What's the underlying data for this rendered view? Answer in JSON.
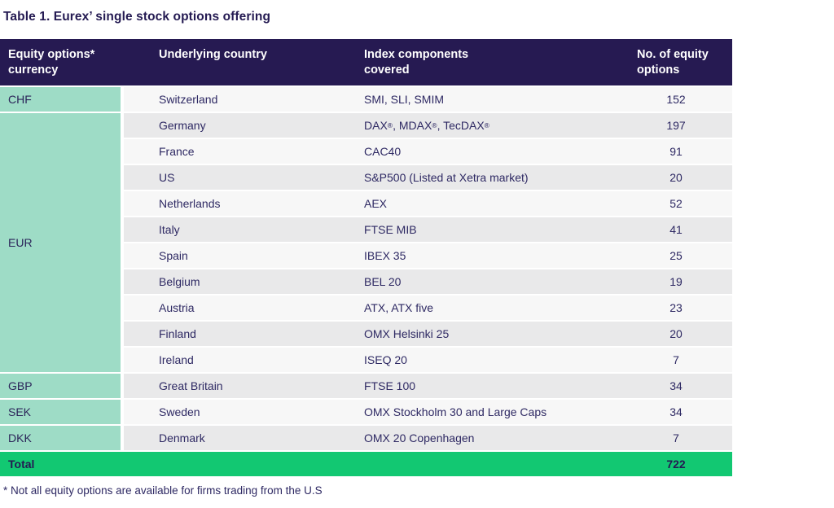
{
  "title": "Table 1. Eurex’ single stock options offering",
  "colors": {
    "header_bg": "#261a52",
    "currency_bg": "#9edcc6",
    "total_bg": "#12c872",
    "row_light": "#f7f7f7",
    "row_gray": "#e9e9ea",
    "text_navy": "#2e2963"
  },
  "table": {
    "columns": [
      {
        "label": "Equity options*\ncurrency"
      },
      {
        "label": "Underlying country"
      },
      {
        "label": "Index components\ncovered"
      },
      {
        "label": "No. of equity\noptions"
      }
    ],
    "currency_groups": [
      {
        "code": "CHF",
        "row_span": 1
      },
      {
        "code": "EUR",
        "row_span": 10
      },
      {
        "code": "GBP",
        "row_span": 1
      },
      {
        "code": "SEK",
        "row_span": 1
      },
      {
        "code": "DKK",
        "row_span": 1
      }
    ],
    "rows": [
      {
        "country": "Switzerland",
        "index": "SMI, SLI, SMIM",
        "count": "152"
      },
      {
        "country": "Germany",
        "index": "DAX®, MDAX®, TecDAX®",
        "count": "197"
      },
      {
        "country": "France",
        "index": "CAC40",
        "count": "91"
      },
      {
        "country": "US",
        "index": "S&P500 (Listed at Xetra market)",
        "count": "20"
      },
      {
        "country": "Netherlands",
        "index": "AEX",
        "count": "52"
      },
      {
        "country": "Italy",
        "index": "FTSE MIB",
        "count": "41"
      },
      {
        "country": "Spain",
        "index": "IBEX 35",
        "count": "25"
      },
      {
        "country": "Belgium",
        "index": "BEL 20",
        "count": "19"
      },
      {
        "country": "Austria",
        "index": "ATX, ATX five",
        "count": "23"
      },
      {
        "country": "Finland",
        "index": "OMX Helsinki 25",
        "count": "20"
      },
      {
        "country": "Ireland",
        "index": "ISEQ 20",
        "count": "7"
      },
      {
        "country": "Great Britain",
        "index": "FTSE 100",
        "count": "34"
      },
      {
        "country": "Sweden",
        "index": "OMX Stockholm 30 and Large Caps",
        "count": "34"
      },
      {
        "country": "Denmark",
        "index": "OMX 20 Copenhagen",
        "count": "7"
      }
    ],
    "total": {
      "label": "Total",
      "value": "722"
    }
  },
  "footnote": "* Not all equity options are available for firms trading from the U.S"
}
